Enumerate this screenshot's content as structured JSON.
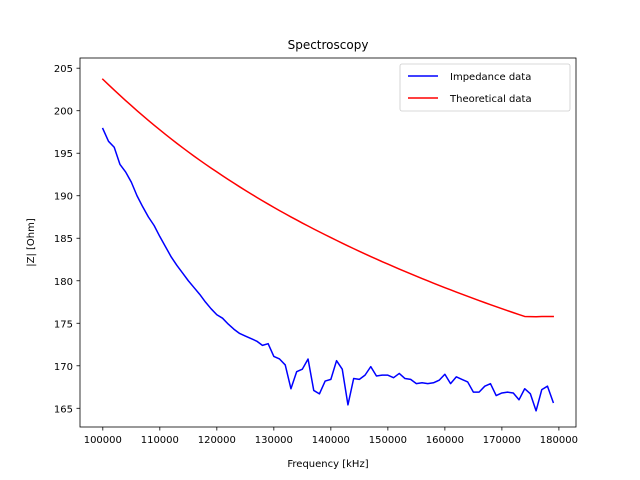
{
  "chart_data": {
    "type": "line",
    "title": "Spectroscopy",
    "xlabel": "Frequency [kHz]",
    "ylabel": "|Z| [Ohm]",
    "xlim": [
      96000,
      183000
    ],
    "ylim": [
      162.8,
      206.2
    ],
    "xticks": [
      100000,
      110000,
      120000,
      130000,
      140000,
      150000,
      160000,
      170000,
      180000
    ],
    "yticks": [
      165,
      170,
      175,
      180,
      185,
      190,
      195,
      200,
      205
    ],
    "grid": false,
    "legend_position": "top-right",
    "series": [
      {
        "name": "Impedance data",
        "color": "#0000ff",
        "x": [
          100000,
          101000,
          102000,
          103000,
          104000,
          105000,
          106000,
          107000,
          108000,
          109000,
          110000,
          111000,
          112000,
          113000,
          114000,
          115000,
          116000,
          117000,
          118000,
          119000,
          120000,
          121000,
          122000,
          123000,
          124000,
          125000,
          126000,
          127000,
          128000,
          129000,
          130000,
          131000,
          132000,
          133000,
          134000,
          135000,
          136000,
          137000,
          138000,
          139000,
          140000,
          141000,
          142000,
          143000,
          144000,
          145000,
          146000,
          147000,
          148000,
          149000,
          150000,
          151000,
          152000,
          153000,
          154000,
          155000,
          156000,
          157000,
          158000,
          159000,
          160000,
          161000,
          162000,
          163000,
          164000,
          165000,
          166000,
          167000,
          168000,
          169000,
          170000,
          171000,
          172000,
          173000,
          174000,
          175000,
          176000,
          177000,
          178000,
          179000
        ],
        "y": [
          197.9,
          196.4,
          195.7,
          193.7,
          192.8,
          191.6,
          190.0,
          188.7,
          187.5,
          186.5,
          185.2,
          184.0,
          182.8,
          181.8,
          180.9,
          180.0,
          179.2,
          178.4,
          177.5,
          176.7,
          176.0,
          175.6,
          174.9,
          174.3,
          173.8,
          173.5,
          173.2,
          172.9,
          172.4,
          172.6,
          171.1,
          170.8,
          170.1,
          167.3,
          169.3,
          169.6,
          170.8,
          167.1,
          166.7,
          168.2,
          168.4,
          170.6,
          169.6,
          165.4,
          168.5,
          168.4,
          168.9,
          169.9,
          168.8,
          168.9,
          168.9,
          168.6,
          169.1,
          168.5,
          168.4,
          167.9,
          168.0,
          167.9,
          168.0,
          168.3,
          169.0,
          167.9,
          168.7,
          168.4,
          168.1,
          166.9,
          166.9,
          167.6,
          167.9,
          166.5,
          166.8,
          166.9,
          166.8,
          166.0,
          167.3,
          166.7,
          164.7,
          167.2,
          167.6,
          165.7
        ]
      },
      {
        "name": "Theoretical data",
        "color": "#ff0000",
        "x": [
          100000,
          101000,
          102000,
          103000,
          104000,
          105000,
          106000,
          107000,
          108000,
          109000,
          110000,
          111000,
          112000,
          113000,
          114000,
          115000,
          116000,
          117000,
          118000,
          119000,
          120000,
          121000,
          122000,
          123000,
          124000,
          125000,
          126000,
          127000,
          128000,
          129000,
          130000,
          131000,
          132000,
          133000,
          134000,
          135000,
          136000,
          137000,
          138000,
          139000,
          140000,
          141000,
          142000,
          143000,
          144000,
          145000,
          146000,
          147000,
          148000,
          149000,
          150000,
          151000,
          152000,
          153000,
          154000,
          155000,
          156000,
          157000,
          158000,
          159000,
          160000,
          161000,
          162000,
          163000,
          164000,
          165000,
          166000,
          167000,
          168000,
          169000,
          170000,
          171000,
          172000,
          173000,
          174000,
          175000,
          176000,
          177000,
          178000,
          179000
        ],
        "y": [
          203.7,
          203.06,
          202.43,
          201.81,
          201.2,
          200.6,
          200.01,
          199.43,
          198.86,
          198.3,
          197.75,
          197.21,
          196.68,
          196.16,
          195.65,
          195.15,
          194.66,
          194.18,
          193.71,
          193.25,
          192.8,
          192.35,
          191.91,
          191.48,
          191.05,
          190.63,
          190.22,
          189.81,
          189.41,
          189.02,
          188.63,
          188.25,
          187.88,
          187.51,
          187.15,
          186.79,
          186.44,
          186.09,
          185.75,
          185.41,
          185.08,
          184.75,
          184.42,
          184.1,
          183.78,
          183.47,
          183.16,
          182.85,
          182.55,
          182.25,
          181.96,
          181.67,
          181.38,
          181.1,
          180.82,
          180.54,
          180.26,
          179.99,
          179.72,
          179.45,
          179.19,
          178.93,
          178.67,
          178.42,
          178.17,
          177.92,
          177.67,
          177.43,
          177.19,
          176.95,
          176.71,
          176.48,
          176.25,
          176.02,
          175.8,
          175.78,
          175.76,
          175.8,
          175.8,
          175.8
        ]
      }
    ]
  }
}
